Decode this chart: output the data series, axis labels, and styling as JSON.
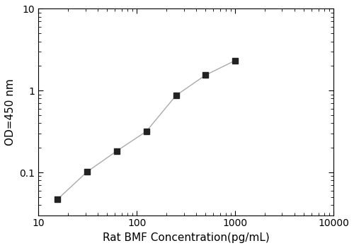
{
  "x": [
    15.625,
    31.25,
    62.5,
    125,
    250,
    500,
    1000
  ],
  "y": [
    0.047,
    0.102,
    0.183,
    0.318,
    0.872,
    1.55,
    2.33
  ],
  "xlabel": "Rat BMF Concentration(pg/mL)",
  "ylabel": "OD=450 nm",
  "xlim": [
    10,
    10000
  ],
  "ylim": [
    0.03,
    10
  ],
  "xticks": [
    10,
    100,
    1000,
    10000
  ],
  "yticks": [
    0.1,
    1,
    10
  ],
  "line_color": "#aaaaaa",
  "marker_color": "#222222",
  "marker": "s",
  "marker_size": 6,
  "line_width": 1.0,
  "background_color": "#ffffff",
  "xlabel_fontsize": 11,
  "ylabel_fontsize": 11,
  "tick_fontsize": 10
}
